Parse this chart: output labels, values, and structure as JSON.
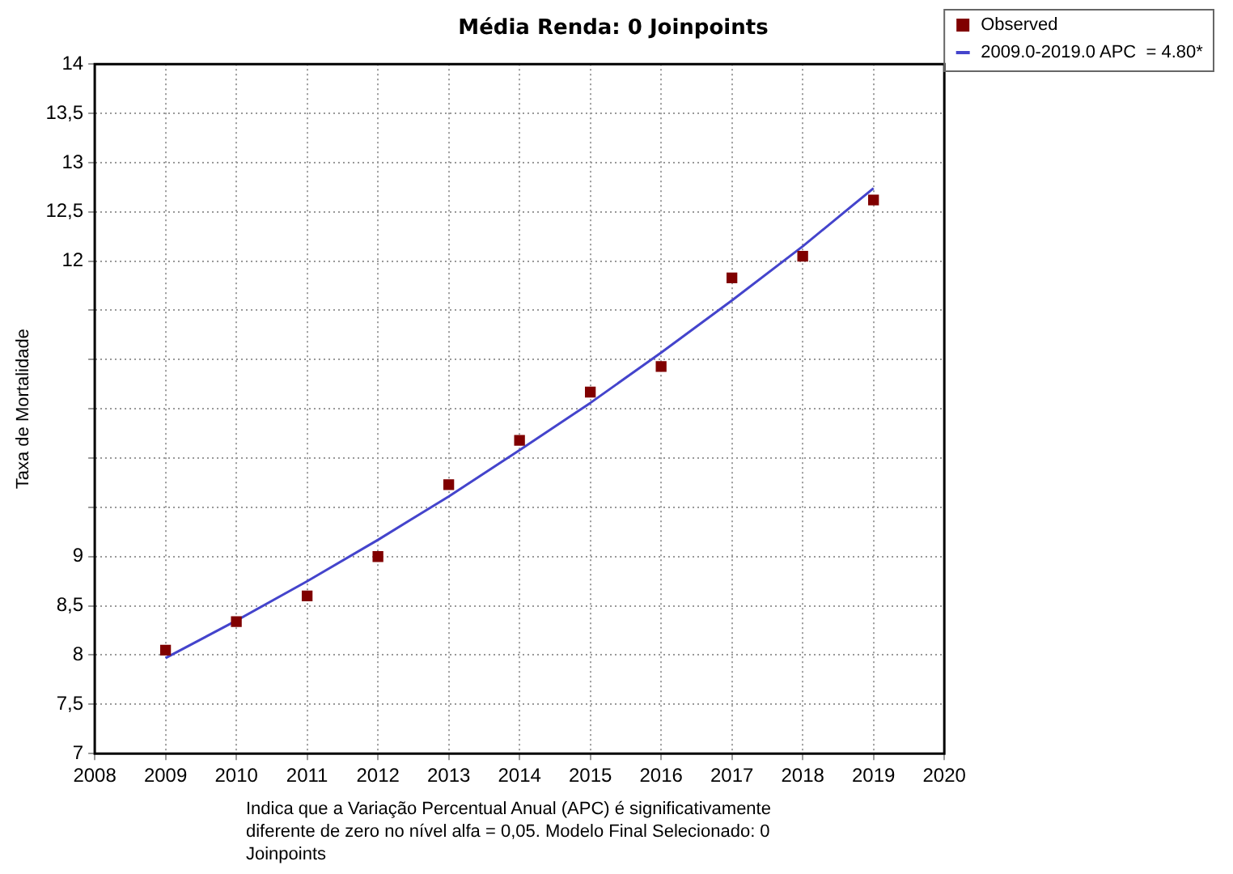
{
  "chart_data": {
    "type": "scatter",
    "title": "Média Renda: 0 Joinpoints",
    "ylabel": "Taxa de Mortalidade",
    "x": [
      2009,
      2010,
      2011,
      2012,
      2013,
      2014,
      2015,
      2016,
      2017,
      2018,
      2019
    ],
    "series": [
      {
        "name": "Observed",
        "marker": "square",
        "color": "#800000",
        "values": [
          8.05,
          8.34,
          8.6,
          9.0,
          9.73,
          10.18,
          10.67,
          10.93,
          11.83,
          12.05,
          12.62
        ]
      },
      {
        "name": "2009.0-2019.0 APC  = 4.80*",
        "type": "line",
        "marker": "none",
        "color": "#4444cc",
        "values": [
          7.97,
          8.35,
          8.75,
          9.17,
          9.61,
          10.08,
          10.56,
          11.07,
          11.6,
          12.15,
          12.74
        ]
      }
    ],
    "xlim": [
      2008,
      2020
    ],
    "xticks": [
      2008,
      2009,
      2010,
      2011,
      2012,
      2013,
      2014,
      2015,
      2016,
      2017,
      2018,
      2019,
      2020
    ],
    "ylim": [
      7,
      14
    ],
    "yticks": [
      7,
      {
        "value": 7.5,
        "label": "7,5"
      },
      8,
      {
        "value": 8.5,
        "label": "8,5"
      },
      9,
      {
        "value": 9.5,
        "label": null
      },
      {
        "value": 10,
        "label": null
      },
      {
        "value": 10.5,
        "label": null
      },
      {
        "value": 11,
        "label": null
      },
      {
        "value": 11.5,
        "label": null
      },
      12,
      {
        "value": 12.5,
        "label": "12,5"
      },
      13,
      {
        "value": 13.5,
        "label": "13,5"
      },
      14
    ],
    "grid": true,
    "legend": "top right",
    "annotations": [
      "Indica que a Variação Percentual Anual (APC) é significativamente diferente de zero no nível alfa = 0,05. Modelo Final Selecionado: 0 Joinpoints"
    ]
  }
}
